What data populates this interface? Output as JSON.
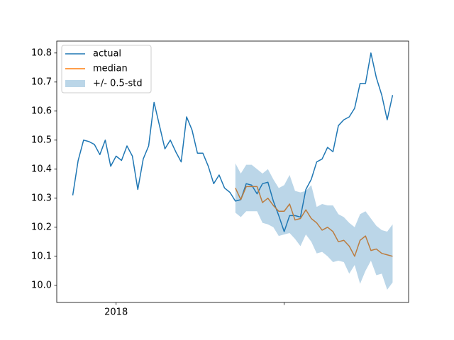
{
  "chart_data": {
    "type": "line",
    "x": [
      0,
      1,
      2,
      3,
      4,
      5,
      6,
      7,
      8,
      9,
      10,
      11,
      12,
      13,
      14,
      15,
      16,
      17,
      18,
      19,
      20,
      21,
      22,
      23,
      24,
      25,
      26,
      27,
      28,
      29,
      30,
      31,
      32,
      33,
      34,
      35,
      36,
      37,
      38,
      39,
      40,
      41,
      42,
      43,
      44,
      45,
      46,
      47,
      48,
      49,
      50,
      51,
      52,
      53,
      54,
      55,
      56,
      57,
      58,
      59
    ],
    "xlim": [
      -2.95,
      61.95
    ],
    "xticks": [
      {
        "value": 8,
        "label": "2018"
      },
      {
        "value": 39,
        "label": null
      }
    ],
    "ylim": [
      9.941,
      10.841
    ],
    "yticks": [
      {
        "value": 10.0,
        "label": "10.0"
      },
      10.1,
      10.2,
      10.3,
      10.4,
      10.5,
      10.6,
      10.7,
      10.8
    ],
    "legend": "upper left",
    "series": [
      {
        "name": "actual",
        "color": "#1f77b4",
        "values": [
          10.31,
          10.43,
          10.5,
          10.495,
          10.485,
          10.45,
          10.5,
          10.41,
          10.445,
          10.43,
          10.48,
          10.445,
          10.33,
          10.435,
          10.48,
          10.63,
          10.55,
          10.47,
          10.5,
          10.46,
          10.425,
          10.58,
          10.535,
          10.455,
          10.455,
          10.41,
          10.35,
          10.38,
          10.335,
          10.32,
          10.29,
          10.295,
          10.35,
          10.345,
          10.315,
          10.35,
          10.355,
          10.29,
          10.24,
          10.185,
          10.24,
          10.24,
          10.235,
          10.33,
          10.365,
          10.425,
          10.435,
          10.475,
          10.46,
          10.55,
          10.57,
          10.58,
          10.61,
          10.695,
          10.695,
          10.8,
          10.715,
          10.655,
          10.57,
          10.655
        ]
      },
      {
        "name": "median",
        "color": "#ff7f0e",
        "values": [
          null,
          null,
          null,
          null,
          null,
          null,
          null,
          null,
          null,
          null,
          null,
          null,
          null,
          null,
          null,
          null,
          null,
          null,
          null,
          null,
          null,
          null,
          null,
          null,
          null,
          null,
          null,
          null,
          null,
          null,
          10.335,
          10.295,
          10.34,
          10.34,
          10.34,
          10.285,
          10.3,
          10.275,
          10.255,
          10.255,
          10.28,
          10.225,
          10.23,
          10.26,
          10.23,
          10.215,
          10.19,
          10.2,
          10.185,
          10.15,
          10.155,
          10.135,
          10.1,
          10.155,
          10.17,
          10.12,
          10.125,
          10.11,
          10.105,
          10.1
        ]
      },
      {
        "name": "+/- 0.5-std",
        "color": "#1f77b4",
        "kind": "band",
        "upper": [
          null,
          null,
          null,
          null,
          null,
          null,
          null,
          null,
          null,
          null,
          null,
          null,
          null,
          null,
          null,
          null,
          null,
          null,
          null,
          null,
          null,
          null,
          null,
          null,
          null,
          null,
          null,
          null,
          null,
          null,
          10.42,
          10.385,
          10.415,
          10.415,
          10.4,
          10.385,
          10.4,
          10.365,
          10.335,
          10.345,
          10.38,
          10.325,
          10.32,
          10.325,
          10.345,
          10.27,
          10.28,
          10.275,
          10.275,
          10.245,
          10.235,
          10.215,
          10.2,
          10.245,
          10.255,
          10.23,
          10.205,
          10.19,
          10.185,
          10.21
        ],
        "lower": [
          null,
          null,
          null,
          null,
          null,
          null,
          null,
          null,
          null,
          null,
          null,
          null,
          null,
          null,
          null,
          null,
          null,
          null,
          null,
          null,
          null,
          null,
          null,
          null,
          null,
          null,
          null,
          null,
          null,
          null,
          10.25,
          10.235,
          10.255,
          10.255,
          10.255,
          10.215,
          10.21,
          10.2,
          10.17,
          10.175,
          10.18,
          10.16,
          10.135,
          10.175,
          10.15,
          10.11,
          10.115,
          10.1,
          10.08,
          10.085,
          10.08,
          10.04,
          10.07,
          10.005,
          10.05,
          10.085,
          10.035,
          10.04,
          9.985,
          10.01
        ]
      }
    ]
  }
}
